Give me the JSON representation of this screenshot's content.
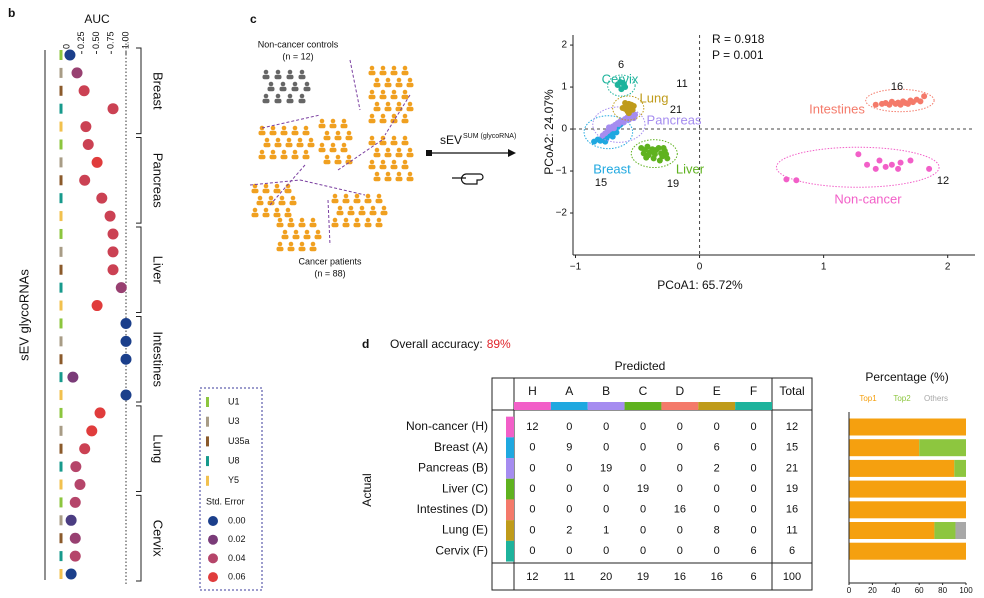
{
  "panel_labels": [
    "b",
    "c",
    "d"
  ],
  "chart_data": [
    {
      "type": "dot",
      "xlabel": "AUC",
      "ylabel": "sEV glycoRNAs",
      "xlim": [
        0,
        1
      ],
      "xticks": [
        0,
        0.25,
        {
          "value": 0.5,
          "label": "0.50"
        },
        0.75,
        {
          "value": 1,
          "label": "1.00"
        }
      ],
      "rna_types": [
        {
          "name": "U1",
          "color": "#8cc63e"
        },
        {
          "name": "U3",
          "color": "#a89c86"
        },
        {
          "name": "U35a",
          "color": "#8b5a2b"
        },
        {
          "name": "U8",
          "color": "#179a8c"
        },
        {
          "name": "Y5",
          "color": "#f2c14e"
        }
      ],
      "groups": [
        {
          "name": "Breast",
          "auc": [
            0.05,
            0.17,
            0.29,
            0.78,
            0.32
          ],
          "se": [
            0.0,
            0.03,
            0.05,
            0.05,
            0.05
          ]
        },
        {
          "name": "Pancreas",
          "auc": [
            0.36,
            0.51,
            0.3,
            0.59,
            0.73
          ],
          "se": [
            0.05,
            0.06,
            0.05,
            0.05,
            0.05
          ]
        },
        {
          "name": "Liver",
          "auc": [
            0.78,
            0.78,
            0.78,
            0.92,
            0.51
          ],
          "se": [
            0.05,
            0.05,
            0.05,
            0.03,
            0.06
          ]
        },
        {
          "name": "Intestines",
          "auc": [
            1.0,
            1.0,
            1.0,
            0.1,
            1.0
          ],
          "se": [
            0.0,
            0.0,
            0.0,
            0.02,
            0.0
          ]
        },
        {
          "name": "Lung",
          "auc": [
            0.56,
            0.42,
            0.3,
            0.15,
            0.22
          ],
          "se": [
            0.06,
            0.06,
            0.05,
            0.04,
            0.04
          ]
        },
        {
          "name": "Cervix",
          "auc": [
            0.14,
            0.07,
            0.14,
            0.14,
            0.07
          ],
          "se": [
            0.04,
            0.01,
            0.03,
            0.04,
            0.0
          ]
        }
      ],
      "se_legend": {
        "title": "Std. Error",
        "ticks": [
          {
            "value": 0,
            "label": "0.00"
          },
          {
            "value": 0.02,
            "label": "0.02"
          },
          {
            "value": 0.04,
            "label": "0.04"
          },
          {
            "value": 0.06,
            "label": "0.06"
          }
        ]
      },
      "se_colors": [
        "#1b3f8b",
        "#7a3b78",
        "#b5456a",
        "#e03c3c"
      ]
    },
    {
      "type": "scatter",
      "xlabel": "PCoA1: 65.72%",
      "ylabel": "PCoA2: 24.07%",
      "annotations": [
        "R = 0.918",
        "P = 0.001"
      ],
      "xlim": [
        -1.02,
        2.22
      ],
      "ylim": [
        -3,
        2.24
      ],
      "xticks": [
        {
          "value": -1,
          "label": "−1"
        },
        0,
        1,
        2
      ],
      "yticks": [
        {
          "value": -2,
          "label": "−2"
        },
        {
          "value": -1,
          "label": "−1"
        },
        0,
        1,
        2
      ],
      "series": [
        {
          "name": "Non-cancer",
          "color": "#f25fc8",
          "count": 12,
          "x": [
            0.7,
            0.78,
            1.28,
            1.35,
            1.45,
            1.5,
            1.55,
            1.6,
            1.62,
            1.7,
            1.85,
            1.42
          ],
          "y": [
            -1.2,
            -1.22,
            -0.6,
            -0.85,
            -0.75,
            -0.9,
            -0.85,
            -0.95,
            -0.8,
            -0.75,
            -0.95,
            -0.95
          ]
        },
        {
          "name": "Breast",
          "color": "#1fa8e0",
          "count": 15,
          "x": [
            -0.85,
            -0.82,
            -0.8,
            -0.78,
            -0.75,
            -0.73,
            -0.7,
            -0.72,
            -0.68,
            -0.66,
            -0.7,
            -0.64,
            -0.62,
            -0.67,
            -0.76
          ],
          "y": [
            -0.3,
            -0.25,
            -0.28,
            -0.2,
            -0.22,
            -0.15,
            -0.1,
            -0.05,
            0.0,
            0.05,
            -0.18,
            0.1,
            0.15,
            -0.08,
            -0.3
          ]
        },
        {
          "name": "Pancreas",
          "color": "#a58cf0",
          "count": 21,
          "x": [
            -0.78,
            -0.76,
            -0.74,
            -0.72,
            -0.73,
            -0.7,
            -0.68,
            -0.69,
            -0.66,
            -0.64,
            -0.65,
            -0.62,
            -0.6,
            -0.61,
            -0.58,
            -0.57,
            -0.56,
            -0.55,
            -0.54,
            -0.53,
            -0.52
          ],
          "y": [
            -0.15,
            -0.1,
            -0.05,
            0.0,
            0.04,
            0.06,
            0.1,
            0.02,
            0.14,
            0.18,
            0.12,
            0.2,
            0.24,
            0.16,
            0.28,
            0.22,
            0.32,
            0.3,
            0.36,
            0.26,
            0.34
          ]
        },
        {
          "name": "Liver",
          "color": "#5fb21f",
          "count": 19,
          "x": [
            -0.47,
            -0.44,
            -0.42,
            -0.4,
            -0.38,
            -0.36,
            -0.35,
            -0.33,
            -0.31,
            -0.3,
            -0.28,
            -0.27,
            -0.26,
            -0.41,
            -0.45,
            -0.37,
            -0.32,
            -0.29,
            -0.43
          ],
          "y": [
            -0.45,
            -0.5,
            -0.42,
            -0.55,
            -0.48,
            -0.6,
            -0.5,
            -0.45,
            -0.58,
            -0.65,
            -0.52,
            -0.6,
            -0.7,
            -0.62,
            -0.58,
            -0.7,
            -0.75,
            -0.45,
            -0.68
          ]
        },
        {
          "name": "Intestines",
          "color": "#f47a6a",
          "count": 16,
          "x": [
            1.42,
            1.47,
            1.5,
            1.53,
            1.55,
            1.58,
            1.6,
            1.62,
            1.64,
            1.66,
            1.68,
            1.7,
            1.72,
            1.75,
            1.78,
            1.81
          ],
          "y": [
            0.58,
            0.6,
            0.62,
            0.58,
            0.65,
            0.6,
            0.63,
            0.58,
            0.66,
            0.62,
            0.6,
            0.68,
            0.64,
            0.7,
            0.66,
            0.78
          ]
        },
        {
          "name": "Lung",
          "color": "#bf9b1a",
          "count": 11,
          "x": [
            -0.6,
            -0.57,
            -0.55,
            -0.59,
            -0.56,
            -0.6,
            -0.54,
            -0.58,
            -0.62,
            -0.53,
            -0.57
          ],
          "y": [
            0.62,
            0.6,
            0.58,
            0.55,
            0.52,
            0.48,
            0.46,
            0.42,
            0.5,
            0.55,
            0.38
          ]
        },
        {
          "name": "Cervix",
          "color": "#1db39c",
          "count": 6,
          "x": [
            -0.64,
            -0.62,
            -0.66,
            -0.6,
            -0.63,
            -0.61
          ],
          "y": [
            1.12,
            1.1,
            1.05,
            1.0,
            0.95,
            1.07
          ]
        }
      ]
    },
    {
      "type": "stacked_hbar",
      "title": "Percentage (%)",
      "xlim": [
        0,
        100
      ],
      "xticks": [
        0,
        20,
        40,
        60,
        80,
        100
      ],
      "series": [
        {
          "name": "Top1",
          "color": "#f5a00f",
          "values": [
            100,
            60,
            90,
            100,
            100,
            73,
            100
          ]
        },
        {
          "name": "Top2",
          "color": "#8dc63f",
          "values": [
            0,
            40,
            10,
            0,
            0,
            18,
            0
          ]
        },
        {
          "name": "Others",
          "color": "#a8a8a8",
          "values": [
            0,
            0,
            0,
            0,
            0,
            9,
            0
          ]
        }
      ]
    }
  ],
  "diagram": {
    "controls": "Non-cancer controls",
    "controls_n": "(n = 12)",
    "patients": "Cancer patients",
    "patients_n": "(n = 88)",
    "arrow_label": "sEV",
    "arrow_sup": "SUM (glycoRNA)"
  },
  "table": {
    "accuracy_label": "Overall accuracy:",
    "accuracy": "89%",
    "column_header": "Predicted",
    "row_header": "Actual",
    "columns": [
      "H",
      "A",
      "B",
      "C",
      "D",
      "E",
      "F",
      "Total"
    ],
    "column_colors": [
      "#f25fc8",
      "#1fa8e0",
      "#a58cf0",
      "#5fb21f",
      "#f47a6a",
      "#bf9b1a",
      "#1db39c"
    ],
    "rows": [
      {
        "label": "Non-cancer (H)",
        "cells": [
          12,
          0,
          0,
          0,
          0,
          0,
          0,
          12
        ]
      },
      {
        "label": "Breast (A)",
        "cells": [
          0,
          9,
          0,
          0,
          0,
          6,
          0,
          15
        ]
      },
      {
        "label": "Pancreas (B)",
        "cells": [
          0,
          0,
          19,
          0,
          0,
          2,
          0,
          21
        ]
      },
      {
        "label": "Liver (C)",
        "cells": [
          0,
          0,
          0,
          19,
          0,
          0,
          0,
          19
        ]
      },
      {
        "label": "Intestines (D)",
        "cells": [
          0,
          0,
          0,
          0,
          16,
          0,
          0,
          16
        ]
      },
      {
        "label": "Lung (E)",
        "cells": [
          0,
          2,
          1,
          0,
          0,
          8,
          0,
          11
        ]
      },
      {
        "label": "Cervix (F)",
        "cells": [
          0,
          0,
          0,
          0,
          0,
          0,
          6,
          6
        ]
      }
    ],
    "totals": [
      12,
      11,
      20,
      19,
      16,
      16,
      6,
      100
    ]
  }
}
